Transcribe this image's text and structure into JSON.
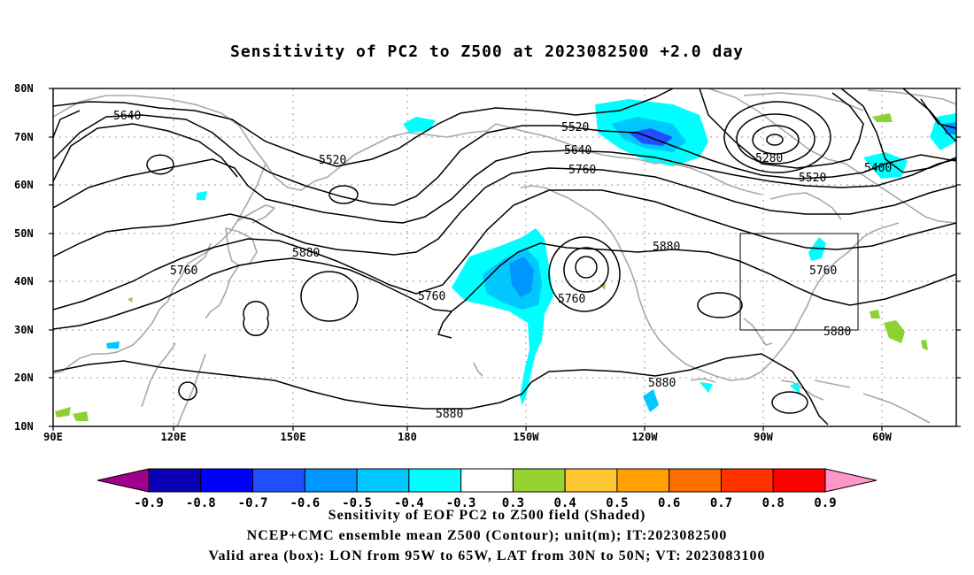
{
  "title": "Sensitivity of PC2 to Z500 at 2023082500 +2.0 day",
  "map": {
    "lat_ticks": [
      "80N",
      "70N",
      "60N",
      "50N",
      "40N",
      "30N",
      "20N",
      "10N"
    ],
    "lon_ticks": [
      "90E",
      "120E",
      "150E",
      "180",
      "150W",
      "120W",
      "90W",
      "60W"
    ],
    "valid_box": {
      "lon_from": "95W",
      "lon_to": "65W",
      "lat_from": "30N",
      "lat_to": "50N"
    },
    "contour_labels": [
      "5640",
      "5520",
      "5520",
      "5640",
      "5760",
      "5280",
      "5400",
      "5520",
      "5760",
      "5880",
      "5760",
      "5880",
      "5760",
      "5760",
      "5880",
      "5880",
      "5880"
    ],
    "colors": {
      "neg": "#00ffff",
      "neg2": "#00c8ff",
      "neg3": "#0096ff",
      "neg4": "#0028d8",
      "pos": "#8cd232",
      "land": "#a0a0a0",
      "contour": "#000000"
    }
  },
  "colorbar": {
    "labels": [
      "-0.9",
      "-0.8",
      "-0.7",
      "-0.6",
      "-0.5",
      "-0.4",
      "-0.3",
      "0.3",
      "0.4",
      "0.5",
      "0.6",
      "0.7",
      "0.8",
      "0.9"
    ],
    "colors": [
      "#a0008c",
      "#0a00b4",
      "#0000ff",
      "#1e50ff",
      "#0096ff",
      "#00c8ff",
      "#00ffff",
      "#ffffff",
      "#96d232",
      "#ffc832",
      "#ffa000",
      "#ff6e00",
      "#ff3200",
      "#ff0000",
      "#ff96c8"
    ]
  },
  "caption": {
    "line1": "Sensitivity of EOF PC2 to Z500 field (Shaded)",
    "line2": "NCEP+CMC ensemble mean Z500 (Contour); unit(m); IT:2023082500",
    "line3": "Valid area (box): LON from 95W to 65W, LAT from 30N to 50N; VT: 2023083100"
  }
}
